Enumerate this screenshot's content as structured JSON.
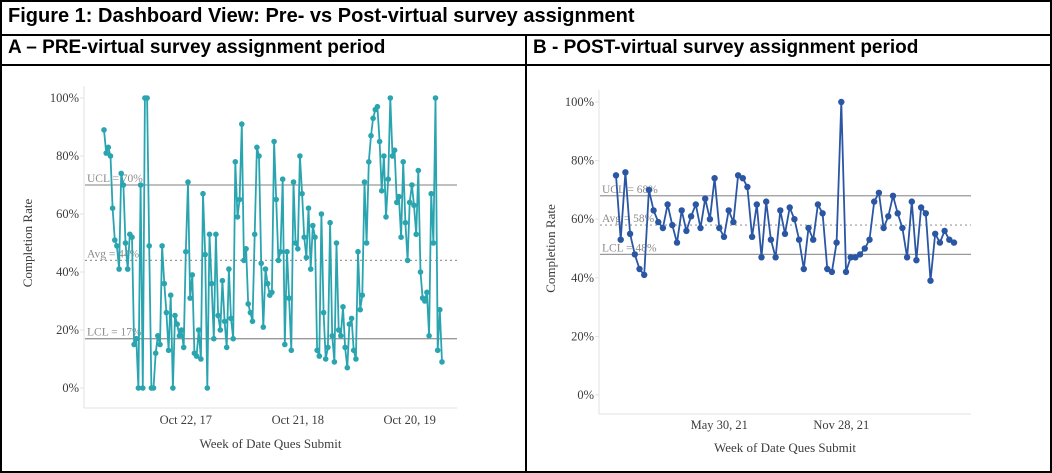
{
  "figure": {
    "title": "Figure 1: Dashboard View: Pre- vs Post-virtual survey assignment",
    "panel_a_header": "A – PRE-virtual survey assignment period",
    "panel_b_header": "B - POST-virtual survey assignment period"
  },
  "colors": {
    "pre_series": "#2AA5B0",
    "post_series": "#2A56A4",
    "ref_line": "#999999",
    "ref_label": "#8c8c8c",
    "axis_text": "#3d3d3d",
    "axis_line": "#e2e2e2",
    "border": "#000000"
  },
  "chart_data": [
    {
      "id": "pre",
      "type": "line",
      "title": "A – PRE-virtual survey assignment period",
      "ylabel": "Completion Rate",
      "xlabel": "Week of Date Ques Submit",
      "ylim": [
        0,
        100
      ],
      "yticks": [
        0,
        20,
        40,
        60,
        80,
        100
      ],
      "ytick_labels": [
        "0%",
        "20%",
        "40%",
        "60%",
        "80%",
        "100%"
      ],
      "grid": false,
      "legend": "none",
      "ref_lines": [
        {
          "name": "ucl",
          "label": "UCL = 70%",
          "value": 70,
          "style": "solid"
        },
        {
          "name": "avg",
          "label": "Avg = 44%",
          "value": 44,
          "style": "dotted"
        },
        {
          "name": "lcl",
          "label": "LCL = 17%",
          "value": 17,
          "style": "solid"
        }
      ],
      "xticks": [
        {
          "label": "Oct 22, 17",
          "index": 38
        },
        {
          "label": "Oct 21, 18",
          "index": 90
        },
        {
          "label": "Oct 20, 19",
          "index": 142
        }
      ],
      "values": [
        89,
        81,
        83,
        80,
        62,
        51,
        49,
        41,
        74,
        70,
        50,
        41,
        53,
        52,
        15,
        17,
        0,
        70,
        0,
        100,
        100,
        49,
        0,
        0,
        12,
        18,
        15,
        49,
        36,
        26,
        13,
        32,
        0,
        25,
        22,
        18,
        20,
        14,
        47,
        71,
        31,
        39,
        12,
        11,
        20,
        10,
        67,
        46,
        0,
        53,
        36,
        17,
        53,
        25,
        20,
        37,
        23,
        14,
        41,
        24,
        17,
        78,
        59,
        65,
        91,
        44,
        48,
        29,
        26,
        23,
        53,
        83,
        80,
        43,
        21,
        41,
        36,
        32,
        33,
        85,
        65,
        44,
        47,
        72,
        15,
        47,
        31,
        13,
        71,
        50,
        48,
        80,
        67,
        52,
        45,
        62,
        41,
        56,
        52,
        13,
        11,
        60,
        26,
        10,
        14,
        57,
        18,
        9,
        50,
        20,
        18,
        28,
        14,
        7,
        22,
        24,
        13,
        10,
        47,
        27,
        32,
        71,
        50,
        78,
        87,
        93,
        96,
        97,
        85,
        68,
        80,
        59,
        72,
        100,
        80,
        82,
        64,
        66,
        52,
        78,
        57,
        44,
        64,
        70,
        63,
        53,
        75,
        40,
        31,
        30,
        33,
        18,
        67,
        50,
        100,
        13,
        27,
        9
      ]
    },
    {
      "id": "post",
      "type": "line",
      "title": "B - POST-virtual survey assignment period",
      "ylabel": "Completion Rate",
      "xlabel": "Week of Date Ques Submit",
      "ylim": [
        0,
        100
      ],
      "yticks": [
        0,
        20,
        40,
        60,
        80,
        100
      ],
      "ytick_labels": [
        "0%",
        "20%",
        "40%",
        "60%",
        "80%",
        "100%"
      ],
      "grid": false,
      "legend": "none",
      "ref_lines": [
        {
          "name": "ucl",
          "label": "UCL = 68%",
          "value": 68,
          "style": "solid"
        },
        {
          "name": "avg",
          "label": "Avg = 58%",
          "value": 58,
          "style": "dotted"
        },
        {
          "name": "lcl",
          "label": "LCL = 48%",
          "value": 48,
          "style": "solid"
        }
      ],
      "xticks": [
        {
          "label": "May 30, 21",
          "index": 22
        },
        {
          "label": "Nov 28, 21",
          "index": 48
        }
      ],
      "values": [
        75,
        53,
        76,
        55,
        48,
        43,
        41,
        70,
        63,
        59,
        57,
        65,
        58,
        52,
        63,
        56,
        61,
        65,
        57,
        67,
        60,
        74,
        57,
        54,
        63,
        59,
        75,
        74,
        71,
        54,
        65,
        47,
        66,
        53,
        47,
        63,
        55,
        64,
        60,
        53,
        43,
        57,
        53,
        65,
        62,
        43,
        42,
        52,
        100,
        42,
        47,
        47,
        48,
        50,
        53,
        66,
        69,
        57,
        61,
        68,
        62,
        57,
        47,
        66,
        46,
        64,
        62,
        39,
        55,
        52,
        56,
        53,
        52
      ]
    }
  ]
}
